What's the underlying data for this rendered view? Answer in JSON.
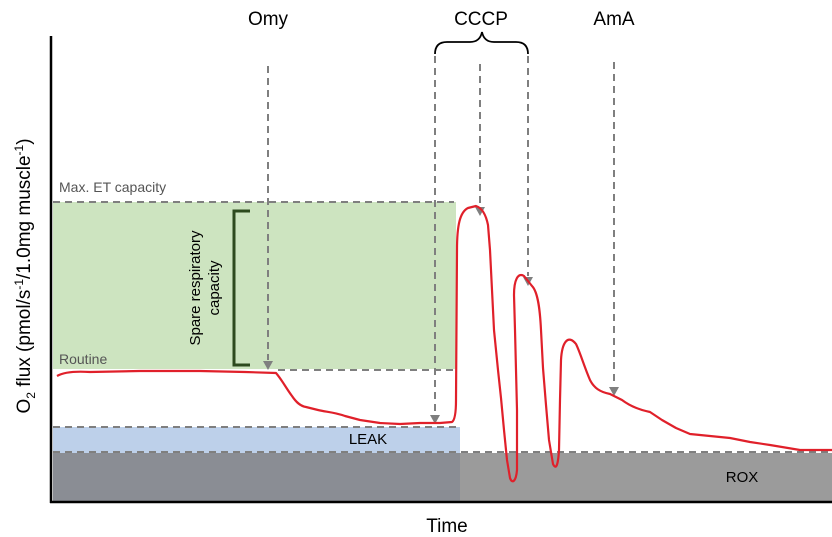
{
  "labels": {
    "omy": "Omy",
    "cccp": "CCCP",
    "ama": "AmA",
    "max_et": "Max. ET capacity",
    "routine": "Routine",
    "leak": "LEAK",
    "rox": "ROX",
    "x_axis": "Time",
    "y_axis_prefix": "O",
    "y_axis_sub": "2",
    "y_axis_main": " flux (pmol/s",
    "y_axis_sup1": "-1",
    "y_axis_mid": "/1.0mg muscle",
    "y_axis_sup2": "-1",
    "y_axis_end": ")",
    "spare_line1": "Spare respiratory",
    "spare_line2": "capacity"
  },
  "colors": {
    "trace": "#e0202a",
    "spare_fill": "#cde4c0",
    "leak_fill": "#bdd0ea",
    "leak_dark": "#8a8d94",
    "rox_fill": "#9b9b9b",
    "dashed": "#7f7f7f",
    "bracket": "#2d4a1e"
  }
}
